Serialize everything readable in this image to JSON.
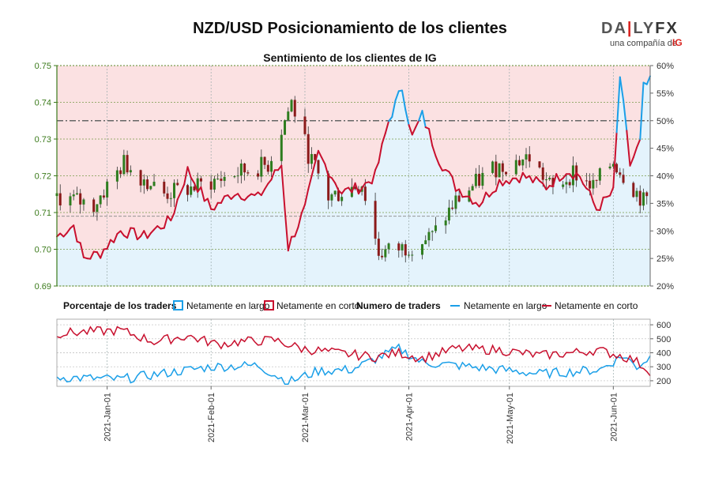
{
  "header": {
    "title": "NZD/USD Posicionamiento de los clientes",
    "logo": {
      "word_before": "DA",
      "word_after": "LY",
      "word_fx": "FX",
      "tagline": "una compañía de",
      "brand": "IG"
    }
  },
  "chart_data": [
    {
      "type": "candlestick",
      "title": "Sentimiento de los clientes de IG",
      "left_axis": {
        "ylim": [
          0.69,
          0.75
        ],
        "ticks": [
          "0.75",
          "0.74",
          "0.73",
          "0.72",
          "0.71",
          "0.70",
          "0.69"
        ],
        "tick_values": [
          0.75,
          0.74,
          0.73,
          0.72,
          0.71,
          0.7,
          0.69
        ]
      },
      "right_axis": {
        "ylim": [
          20,
          60
        ],
        "ticks": [
          "60%",
          "55%",
          "50%",
          "45%",
          "40%",
          "35%",
          "30%",
          "25%",
          "20%"
        ],
        "tick_values": [
          60,
          55,
          50,
          45,
          40,
          35,
          30,
          25,
          20
        ]
      },
      "reference_line_percent": 50,
      "reference_price": 0.709,
      "colors": {
        "long": "#1a9fe8",
        "short": "#c8102e",
        "long_fill": "#e4f3fc",
        "short_fill": "#fbe1e2",
        "candle_up": "#2e7d1f",
        "candle_down": "#8b1a1a"
      },
      "x_range": [
        "2020-12-17",
        "2021-06-12"
      ],
      "close_keys": [
        [
          "2020-12-17",
          0.7145
        ],
        [
          "2020-12-28",
          0.712
        ],
        [
          "2021-01-06",
          0.7235
        ],
        [
          "2021-01-18",
          0.715
        ],
        [
          "2021-01-28",
          0.717
        ],
        [
          "2021-02-08",
          0.7205
        ],
        [
          "2021-02-18",
          0.723
        ],
        [
          "2021-02-25",
          0.74
        ],
        [
          "2021-03-02",
          0.726
        ],
        [
          "2021-03-08",
          0.714
        ],
        [
          "2021-03-18",
          0.718
        ],
        [
          "2021-03-23",
          0.699
        ],
        [
          "2021-03-31",
          0.7005
        ],
        [
          "2021-04-08",
          0.7035
        ],
        [
          "2021-04-15",
          0.713
        ],
        [
          "2021-04-26",
          0.722
        ],
        [
          "2021-05-07",
          0.725
        ],
        [
          "2021-05-14",
          0.716
        ],
        [
          "2021-05-20",
          0.721
        ],
        [
          "2021-05-26",
          0.717
        ],
        [
          "2021-06-01",
          0.724
        ],
        [
          "2021-06-05",
          0.719
        ],
        [
          "2021-06-10",
          0.713
        ],
        [
          "2021-06-12",
          0.7145
        ]
      ],
      "sentiment_keys_percent": [
        [
          "2020-12-17",
          29
        ],
        [
          "2020-12-22",
          31
        ],
        [
          "2020-12-25",
          25
        ],
        [
          "2020-12-30",
          26
        ],
        [
          "2021-01-05",
          30
        ],
        [
          "2021-01-12",
          29
        ],
        [
          "2021-01-20",
          32
        ],
        [
          "2021-01-25",
          41
        ],
        [
          "2021-02-01",
          34
        ],
        [
          "2021-02-08",
          37
        ],
        [
          "2021-02-15",
          36
        ],
        [
          "2021-02-22",
          42
        ],
        [
          "2021-02-24",
          27
        ],
        [
          "2021-03-01",
          34
        ],
        [
          "2021-03-05",
          44
        ],
        [
          "2021-03-12",
          37
        ],
        [
          "2021-03-18",
          38
        ],
        [
          "2021-03-22",
          40
        ],
        [
          "2021-03-26",
          50
        ],
        [
          "2021-03-30",
          56
        ],
        [
          "2021-04-02",
          47
        ],
        [
          "2021-04-05",
          51
        ],
        [
          "2021-04-10",
          43
        ],
        [
          "2021-04-15",
          38
        ],
        [
          "2021-04-22",
          35
        ],
        [
          "2021-04-28",
          39
        ],
        [
          "2021-05-05",
          40
        ],
        [
          "2021-05-12",
          38
        ],
        [
          "2021-05-18",
          41
        ],
        [
          "2021-05-22",
          40
        ],
        [
          "2021-05-27",
          34
        ],
        [
          "2021-06-01",
          37
        ],
        [
          "2021-06-03",
          58
        ],
        [
          "2021-06-06",
          42
        ],
        [
          "2021-06-09",
          46
        ],
        [
          "2021-06-10",
          56
        ],
        [
          "2021-06-12",
          57
        ]
      ]
    },
    {
      "type": "line",
      "title": "Numero de traders",
      "ylim": [
        160,
        640
      ],
      "ticks": [
        "600",
        "500",
        "400",
        "300",
        "200"
      ],
      "tick_values": [
        600,
        500,
        400,
        300,
        200
      ],
      "series": [
        {
          "name": "Netamente en largo",
          "color": "#1a9fe8",
          "keys": [
            [
              "2020-12-17",
              225
            ],
            [
              "2021-01-05",
              210
            ],
            [
              "2021-01-20",
              260
            ],
            [
              "2021-02-01",
              300
            ],
            [
              "2021-02-15",
              310
            ],
            [
              "2021-02-24",
              190
            ],
            [
              "2021-03-05",
              270
            ],
            [
              "2021-03-15",
              280
            ],
            [
              "2021-03-29",
              430
            ],
            [
              "2021-04-05",
              330
            ],
            [
              "2021-04-15",
              310
            ],
            [
              "2021-04-28",
              280
            ],
            [
              "2021-05-10",
              250
            ],
            [
              "2021-05-20",
              265
            ],
            [
              "2021-05-28",
              280
            ],
            [
              "2021-06-04",
              380
            ],
            [
              "2021-06-08",
              300
            ],
            [
              "2021-06-12",
              370
            ]
          ]
        },
        {
          "name": "Netamente en corto",
          "color": "#c8102e",
          "keys": [
            [
              "2020-12-17",
              540
            ],
            [
              "2021-01-05",
              560
            ],
            [
              "2021-01-15",
              480
            ],
            [
              "2021-01-25",
              520
            ],
            [
              "2021-02-03",
              460
            ],
            [
              "2021-02-10",
              480
            ],
            [
              "2021-02-20",
              490
            ],
            [
              "2021-02-28",
              430
            ],
            [
              "2021-03-10",
              400
            ],
            [
              "2021-03-22",
              370
            ],
            [
              "2021-03-29",
              400
            ],
            [
              "2021-04-05",
              360
            ],
            [
              "2021-04-15",
              430
            ],
            [
              "2021-04-28",
              420
            ],
            [
              "2021-05-10",
              380
            ],
            [
              "2021-05-20",
              400
            ],
            [
              "2021-05-27",
              420
            ],
            [
              "2021-06-03",
              380
            ],
            [
              "2021-06-07",
              350
            ],
            [
              "2021-06-12",
              270
            ]
          ]
        }
      ]
    }
  ],
  "x_axis": {
    "labels": [
      "2021-Jan-01",
      "2021-Feb-01",
      "2021-Mar-01",
      "2021-Apr-01",
      "2021-May-01",
      "2021-Jun-01"
    ],
    "dates": [
      "2021-01-01",
      "2021-02-01",
      "2021-03-01",
      "2021-04-01",
      "2021-05-01",
      "2021-06-01"
    ]
  },
  "legend_top": {
    "heading": "Porcentaje de los traders",
    "long_label": "Netamente en largo",
    "short_label": "Netamente en corto"
  },
  "legend_bottom": {
    "heading": "Numero de traders",
    "long_label": "Netamente en largo",
    "short_label": "Netamente en corto"
  }
}
